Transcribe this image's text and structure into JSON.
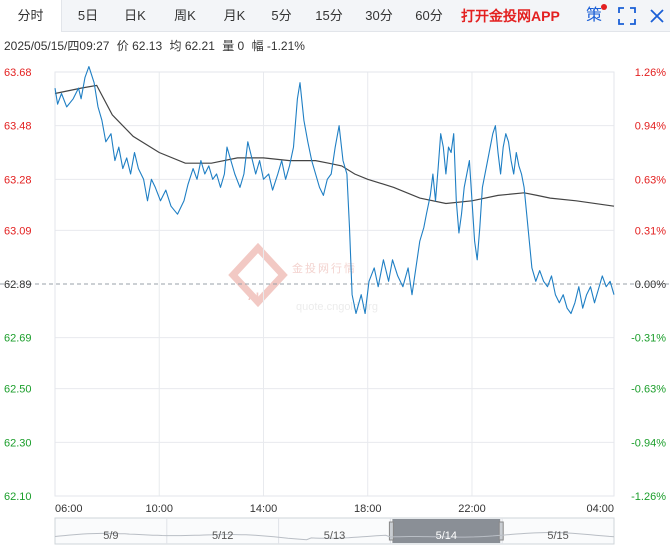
{
  "tabs": [
    {
      "label": "分时",
      "active": true
    },
    {
      "label": "5日"
    },
    {
      "label": "日K"
    },
    {
      "label": "周K"
    },
    {
      "label": "月K"
    },
    {
      "label": "5分"
    },
    {
      "label": "15分"
    },
    {
      "label": "30分"
    },
    {
      "label": "60分"
    }
  ],
  "promo_label": "打开金投网APP",
  "ce_label": "策",
  "info": {
    "datetime": "2025/05/15/四09:27",
    "price": "价 62.13",
    "avg": "均 62.21",
    "volume": "量 0",
    "change": "幅 -1.21%"
  },
  "watermark": {
    "cn": "金投网行情",
    "url": "quote.cngold.org",
    "logo": "AU"
  },
  "colors": {
    "up": "#e32020",
    "down": "#1b9e2b",
    "price_line": "#1f7fc4",
    "avg_line": "#444444",
    "grid": "#e8eaee"
  },
  "chart_data": {
    "type": "line",
    "ylim": [
      62.1,
      63.68
    ],
    "base": 62.89,
    "grid": true,
    "y_ticks_left": [
      "63.68",
      "63.48",
      "63.28",
      "63.09",
      "62.89",
      "62.69",
      "62.50",
      "62.30",
      "62.10"
    ],
    "y_ticks_right": [
      "1.26%",
      "0.94%",
      "0.63%",
      "0.31%",
      "0.00%",
      "-0.31%",
      "-0.63%",
      "-0.94%",
      "-1.26%"
    ],
    "x_ticks": [
      "06:00",
      "10:00",
      "14:00",
      "18:00",
      "22:00",
      "04:00"
    ],
    "x_hours": [
      0,
      4,
      8,
      12,
      16,
      21.45
    ],
    "series": [
      {
        "points": [
          [
            0.0,
            63.62
          ],
          [
            0.1,
            63.56
          ],
          [
            0.25,
            63.6
          ],
          [
            0.45,
            63.55
          ],
          [
            0.7,
            63.58
          ],
          [
            0.9,
            63.62
          ],
          [
            1.0,
            63.58
          ],
          [
            1.15,
            63.66
          ],
          [
            1.3,
            63.7
          ],
          [
            1.5,
            63.64
          ],
          [
            1.65,
            63.55
          ],
          [
            1.8,
            63.5
          ],
          [
            1.95,
            63.42
          ],
          [
            2.15,
            63.45
          ],
          [
            2.3,
            63.35
          ],
          [
            2.45,
            63.4
          ],
          [
            2.6,
            63.32
          ],
          [
            2.75,
            63.36
          ],
          [
            2.9,
            63.3
          ],
          [
            3.05,
            63.38
          ],
          [
            3.2,
            63.32
          ],
          [
            3.4,
            63.28
          ],
          [
            3.55,
            63.2
          ],
          [
            3.7,
            63.28
          ],
          [
            3.85,
            63.25
          ],
          [
            4.05,
            63.2
          ],
          [
            4.25,
            63.24
          ],
          [
            4.45,
            63.18
          ],
          [
            4.7,
            63.15
          ],
          [
            4.95,
            63.2
          ],
          [
            5.1,
            63.26
          ],
          [
            5.3,
            63.32
          ],
          [
            5.45,
            63.28
          ],
          [
            5.6,
            63.35
          ],
          [
            5.75,
            63.3
          ],
          [
            5.9,
            63.33
          ],
          [
            6.05,
            63.28
          ],
          [
            6.2,
            63.3
          ],
          [
            6.35,
            63.25
          ],
          [
            6.5,
            63.3
          ],
          [
            6.6,
            63.4
          ],
          [
            6.75,
            63.35
          ],
          [
            6.9,
            63.3
          ],
          [
            7.1,
            63.25
          ],
          [
            7.25,
            63.3
          ],
          [
            7.4,
            63.42
          ],
          [
            7.55,
            63.36
          ],
          [
            7.7,
            63.3
          ],
          [
            7.85,
            63.35
          ],
          [
            8.0,
            63.28
          ],
          [
            8.2,
            63.3
          ],
          [
            8.35,
            63.24
          ],
          [
            8.55,
            63.3
          ],
          [
            8.7,
            63.35
          ],
          [
            8.85,
            63.28
          ],
          [
            9.0,
            63.33
          ],
          [
            9.15,
            63.4
          ],
          [
            9.3,
            63.58
          ],
          [
            9.4,
            63.64
          ],
          [
            9.55,
            63.5
          ],
          [
            9.7,
            63.42
          ],
          [
            9.85,
            63.35
          ],
          [
            10.0,
            63.3
          ],
          [
            10.15,
            63.25
          ],
          [
            10.3,
            63.22
          ],
          [
            10.45,
            63.28
          ],
          [
            10.6,
            63.3
          ],
          [
            10.75,
            63.4
          ],
          [
            10.9,
            63.48
          ],
          [
            11.05,
            63.35
          ],
          [
            11.2,
            63.3
          ],
          [
            11.3,
            63.1
          ],
          [
            11.4,
            62.85
          ],
          [
            11.55,
            62.78
          ],
          [
            11.75,
            62.85
          ],
          [
            11.9,
            62.78
          ],
          [
            12.05,
            62.9
          ],
          [
            12.25,
            62.95
          ],
          [
            12.4,
            62.88
          ],
          [
            12.6,
            62.98
          ],
          [
            12.8,
            62.9
          ],
          [
            12.95,
            62.98
          ],
          [
            13.15,
            62.92
          ],
          [
            13.35,
            62.88
          ],
          [
            13.55,
            62.95
          ],
          [
            13.7,
            62.85
          ],
          [
            13.85,
            62.95
          ],
          [
            14.0,
            63.05
          ],
          [
            14.15,
            63.1
          ],
          [
            14.25,
            63.15
          ],
          [
            14.4,
            63.22
          ],
          [
            14.5,
            63.3
          ],
          [
            14.6,
            63.2
          ],
          [
            14.7,
            63.32
          ],
          [
            14.8,
            63.45
          ],
          [
            14.9,
            63.4
          ],
          [
            15.0,
            63.3
          ],
          [
            15.1,
            63.4
          ],
          [
            15.2,
            63.38
          ],
          [
            15.3,
            63.45
          ],
          [
            15.4,
            63.2
          ],
          [
            15.5,
            63.08
          ],
          [
            15.6,
            63.15
          ],
          [
            15.7,
            63.25
          ],
          [
            15.8,
            63.3
          ],
          [
            15.9,
            63.35
          ],
          [
            16.0,
            63.2
          ],
          [
            16.1,
            63.05
          ],
          [
            16.2,
            62.98
          ],
          [
            16.3,
            63.1
          ],
          [
            16.4,
            63.25
          ],
          [
            16.5,
            63.3
          ],
          [
            16.6,
            63.35
          ],
          [
            16.7,
            63.4
          ],
          [
            16.8,
            63.45
          ],
          [
            16.9,
            63.48
          ],
          [
            17.0,
            63.38
          ],
          [
            17.1,
            63.3
          ],
          [
            17.2,
            63.4
          ],
          [
            17.3,
            63.45
          ],
          [
            17.4,
            63.42
          ],
          [
            17.5,
            63.35
          ],
          [
            17.6,
            63.3
          ],
          [
            17.7,
            63.38
          ],
          [
            17.8,
            63.33
          ],
          [
            17.9,
            63.3
          ],
          [
            18.0,
            63.25
          ],
          [
            18.1,
            63.15
          ],
          [
            18.2,
            63.05
          ],
          [
            18.3,
            62.95
          ],
          [
            18.45,
            62.9
          ],
          [
            18.6,
            62.94
          ],
          [
            18.75,
            62.9
          ],
          [
            18.9,
            62.88
          ],
          [
            19.05,
            62.92
          ],
          [
            19.2,
            62.85
          ],
          [
            19.35,
            62.82
          ],
          [
            19.5,
            62.85
          ],
          [
            19.65,
            62.8
          ],
          [
            19.8,
            62.78
          ],
          [
            19.95,
            62.82
          ],
          [
            20.1,
            62.88
          ],
          [
            20.25,
            62.8
          ],
          [
            20.4,
            62.85
          ],
          [
            20.55,
            62.88
          ],
          [
            20.7,
            62.82
          ],
          [
            20.85,
            62.87
          ],
          [
            21.0,
            62.92
          ],
          [
            21.15,
            62.88
          ],
          [
            21.3,
            62.9
          ],
          [
            21.45,
            62.85
          ]
        ]
      },
      {
        "points": [
          [
            0.0,
            63.6
          ],
          [
            1.0,
            63.62
          ],
          [
            1.6,
            63.63
          ],
          [
            2.2,
            63.52
          ],
          [
            3.0,
            63.44
          ],
          [
            4.0,
            63.38
          ],
          [
            5.0,
            63.34
          ],
          [
            6.0,
            63.34
          ],
          [
            7.0,
            63.36
          ],
          [
            8.0,
            63.36
          ],
          [
            9.0,
            63.35
          ],
          [
            10.0,
            63.35
          ],
          [
            10.5,
            63.34
          ],
          [
            11.0,
            63.33
          ],
          [
            11.5,
            63.3
          ],
          [
            12.0,
            63.28
          ],
          [
            13.0,
            63.25
          ],
          [
            14.0,
            63.21
          ],
          [
            15.0,
            63.19
          ],
          [
            16.0,
            63.2
          ],
          [
            17.0,
            63.22
          ],
          [
            18.0,
            63.23
          ],
          [
            18.5,
            63.22
          ],
          [
            19.0,
            63.21
          ],
          [
            20.0,
            63.2
          ],
          [
            21.45,
            63.18
          ]
        ]
      }
    ]
  },
  "navigator": {
    "labels": [
      "5/9",
      "5/12",
      "5/13",
      "5/14",
      "5/15"
    ],
    "selected_label": "5/14"
  }
}
